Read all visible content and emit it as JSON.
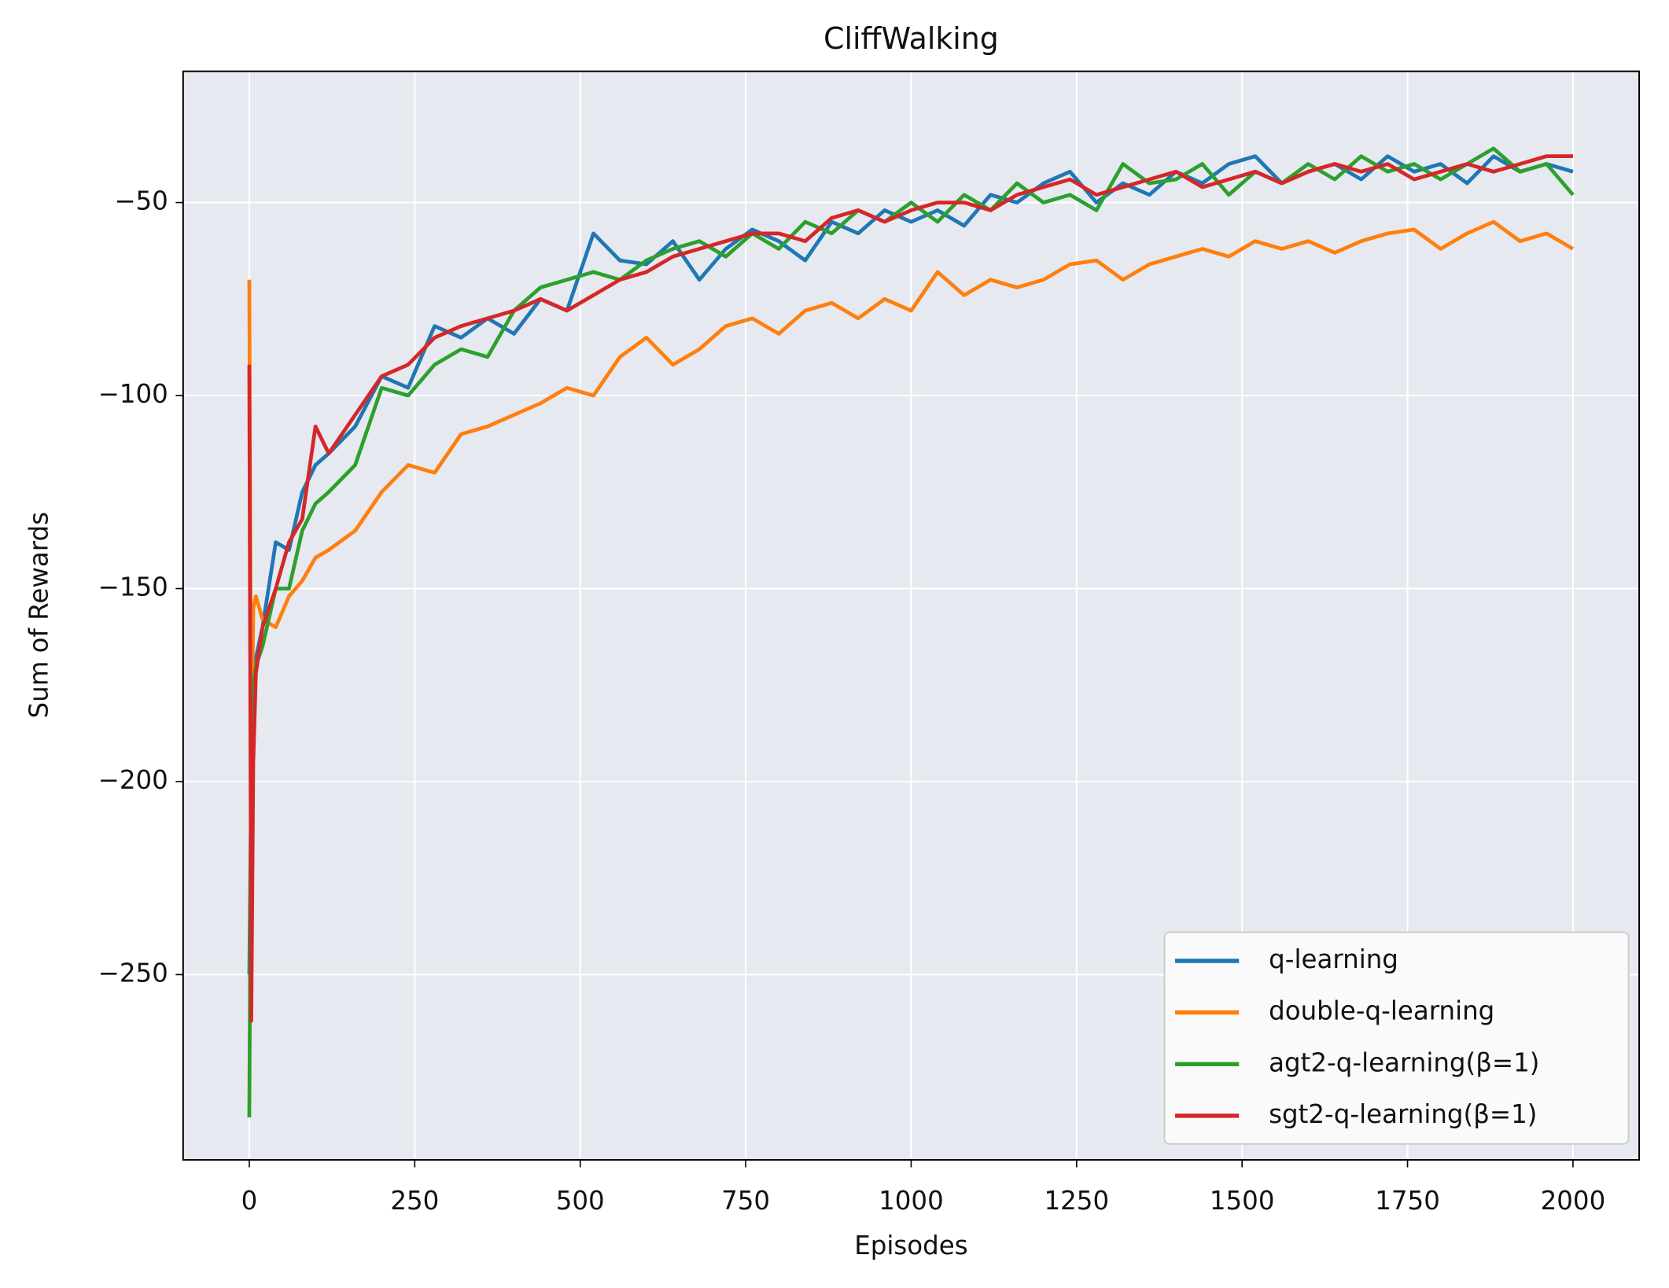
{
  "chart_data": {
    "type": "line",
    "title": "CliffWalking",
    "x_label": "Episodes",
    "y_label": "Sum of Rewards",
    "x": [
      0,
      3,
      6,
      10,
      20,
      40,
      60,
      80,
      100,
      120,
      160,
      200,
      240,
      280,
      320,
      360,
      400,
      440,
      480,
      520,
      560,
      600,
      640,
      680,
      720,
      760,
      800,
      840,
      880,
      920,
      960,
      1000,
      1040,
      1080,
      1120,
      1160,
      1200,
      1240,
      1280,
      1320,
      1360,
      1400,
      1440,
      1480,
      1520,
      1560,
      1600,
      1640,
      1680,
      1720,
      1760,
      1800,
      1840,
      1880,
      1920,
      1960,
      2000
    ],
    "series": [
      {
        "name": "q-learning",
        "color": "#1f77b4",
        "values": [
          -250,
          -200,
          -175,
          -168,
          -160,
          -138,
          -140,
          -125,
          -118,
          -115,
          -108,
          -95,
          -98,
          -82,
          -85,
          -80,
          -84,
          -75,
          -78,
          -58,
          -65,
          -66,
          -60,
          -70,
          -62,
          -57,
          -60,
          -65,
          -55,
          -58,
          -52,
          -55,
          -52,
          -56,
          -48,
          -50,
          -45,
          -42,
          -50,
          -45,
          -48,
          -42,
          -45,
          -40,
          -38,
          -45,
          -42,
          -40,
          -44,
          -38,
          -42,
          -40,
          -45,
          -38,
          -42,
          -40,
          -42
        ]
      },
      {
        "name": "double-q-learning",
        "color": "#ff7f0e",
        "values": [
          -70,
          -200,
          -155,
          -152,
          -158,
          -160,
          -152,
          -148,
          -142,
          -140,
          -135,
          -125,
          -118,
          -120,
          -110,
          -108,
          -105,
          -102,
          -98,
          -100,
          -90,
          -85,
          -92,
          -88,
          -82,
          -80,
          -84,
          -78,
          -76,
          -80,
          -75,
          -78,
          -68,
          -74,
          -70,
          -72,
          -70,
          -66,
          -65,
          -70,
          -66,
          -64,
          -62,
          -64,
          -60,
          -62,
          -60,
          -63,
          -60,
          -58,
          -57,
          -62,
          -58,
          -55,
          -60,
          -58,
          -62
        ]
      },
      {
        "name": "agt2-q-learning(β=1)",
        "color": "#2ca02c",
        "values": [
          -287,
          -190,
          -175,
          -170,
          -165,
          -150,
          -150,
          -135,
          -128,
          -125,
          -118,
          -98,
          -100,
          -92,
          -88,
          -90,
          -78,
          -72,
          -70,
          -68,
          -70,
          -65,
          -62,
          -60,
          -64,
          -58,
          -62,
          -55,
          -58,
          -52,
          -55,
          -50,
          -55,
          -48,
          -52,
          -45,
          -50,
          -48,
          -52,
          -40,
          -45,
          -44,
          -40,
          -48,
          -42,
          -45,
          -40,
          -44,
          -38,
          -42,
          -40,
          -44,
          -40,
          -36,
          -42,
          -40,
          -48
        ]
      },
      {
        "name": "sgt2-q-learning(β=1)",
        "color": "#d62728",
        "values": [
          -92,
          -262,
          -195,
          -172,
          -160,
          -150,
          -138,
          -132,
          -108,
          -115,
          -105,
          -95,
          -92,
          -85,
          -82,
          -80,
          -78,
          -75,
          -78,
          -74,
          -70,
          -68,
          -64,
          -62,
          -60,
          -58,
          -58,
          -60,
          -54,
          -52,
          -55,
          -52,
          -50,
          -50,
          -52,
          -48,
          -46,
          -44,
          -48,
          -46,
          -44,
          -42,
          -46,
          -44,
          -42,
          -45,
          -42,
          -40,
          -42,
          -40,
          -44,
          -42,
          -40,
          -42,
          -40,
          -38,
          -38
        ]
      }
    ],
    "xlim": [
      -100,
      2100
    ],
    "ylim": [
      -298,
      -16
    ],
    "xticks": [
      0,
      250,
      500,
      750,
      1000,
      1250,
      1500,
      1750,
      2000
    ],
    "yticks": [
      {
        "value": -250,
        "label": "−250"
      },
      {
        "value": -200,
        "label": "−200"
      },
      {
        "value": -150,
        "label": "−150"
      },
      {
        "value": -100,
        "label": "−100"
      },
      {
        "value": -50,
        "label": "−50"
      }
    ],
    "grid": true,
    "legend": "lower right"
  }
}
